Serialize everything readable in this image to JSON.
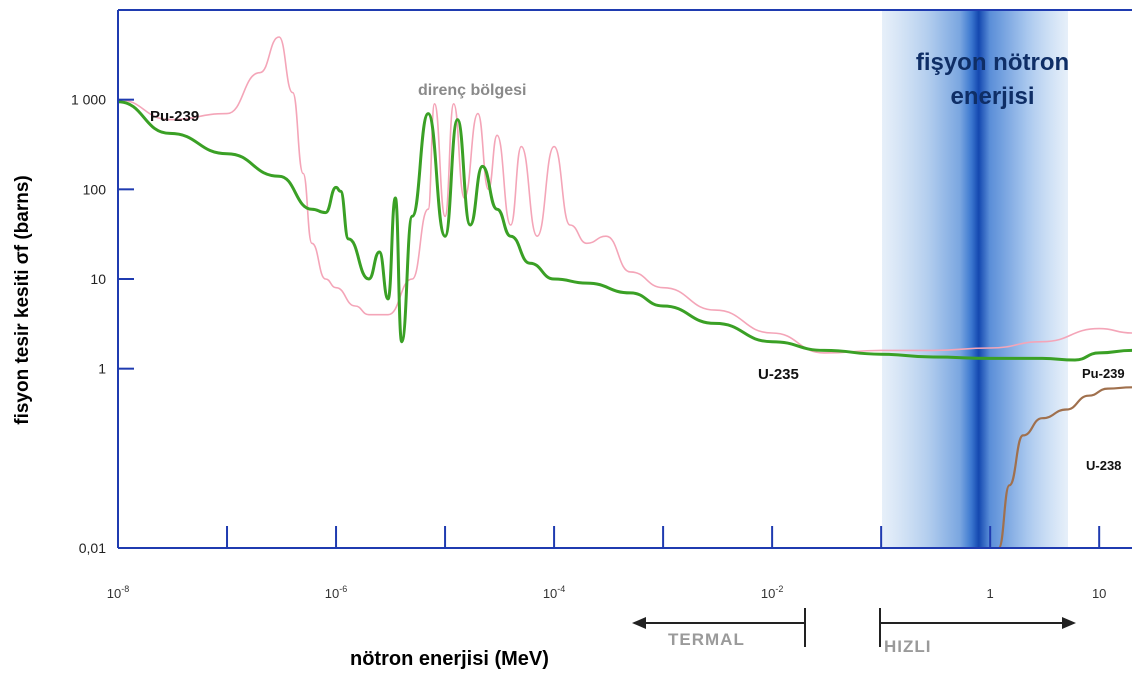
{
  "chart_data": {
    "type": "line",
    "title": "",
    "xlabel": "nötron enerjisi (MeV)",
    "ylabel": "fisyon tesir kesiti σf (barns)",
    "xscale": "log",
    "yscale": "log",
    "xlim": [
      1e-08,
      20
    ],
    "ylim": [
      0.01,
      10000
    ],
    "x_ticks": [
      {
        "value": 1e-08,
        "base": "10",
        "exp": "-8"
      },
      {
        "value": 1e-06,
        "base": "10",
        "exp": "-6"
      },
      {
        "value": 0.0001,
        "base": "10",
        "exp": "-4"
      },
      {
        "value": 0.01,
        "base": "10",
        "exp": "-2"
      },
      {
        "value": 1,
        "base": "1",
        "exp": ""
      },
      {
        "value": 10,
        "base": "10",
        "exp": ""
      }
    ],
    "y_ticks": [
      {
        "value": 1000,
        "label": "1 000"
      },
      {
        "value": 100,
        "label": "100"
      },
      {
        "value": 10,
        "label": "10"
      },
      {
        "value": 1,
        "label": "1"
      },
      {
        "value": 0.01,
        "label": "0,01"
      }
    ],
    "annotations": {
      "resonance_region": "direnç bölgesi",
      "fission_energy": [
        "fişyon nötron",
        "enerjisi"
      ],
      "thermal": "TERMAL",
      "fast": "HIZLI"
    },
    "series": [
      {
        "name": "Pu-239",
        "color": "#f4a5b8",
        "x": [
          1e-08,
          3e-08,
          1e-07,
          2e-07,
          3e-07,
          4e-07,
          5e-07,
          6e-07,
          8e-07,
          1e-06,
          1.5e-06,
          2e-06,
          3e-06,
          5e-06,
          7e-06,
          8e-06,
          1e-05,
          1.2e-05,
          1.5e-05,
          2e-05,
          2.5e-05,
          3e-05,
          4e-05,
          5e-05,
          7e-05,
          0.0001,
          0.00014,
          0.0002,
          0.0003,
          0.0005,
          0.001,
          0.003,
          0.01,
          0.03,
          0.1,
          0.3,
          1,
          3,
          10,
          20
        ],
        "y": [
          1000,
          600,
          700,
          2000,
          5000,
          1200,
          150,
          25,
          10,
          8,
          5,
          4,
          4,
          10,
          60,
          900,
          50,
          900,
          80,
          700,
          100,
          400,
          40,
          300,
          30,
          300,
          40,
          25,
          30,
          12,
          8,
          4.5,
          2.5,
          1.5,
          1.6,
          1.6,
          1.7,
          2.0,
          2.8,
          2.5
        ]
      },
      {
        "name": "U-235",
        "color": "#3aa025",
        "x": [
          1e-08,
          3e-08,
          1e-07,
          3e-07,
          6e-07,
          8e-07,
          1e-06,
          1.1e-06,
          1.3e-06,
          2e-06,
          2.5e-06,
          3e-06,
          3.5e-06,
          4e-06,
          5e-06,
          7e-06,
          1e-05,
          1.3e-05,
          1.7e-05,
          2.2e-05,
          3e-05,
          4e-05,
          6e-05,
          0.0001,
          0.0002,
          0.0005,
          0.001,
          0.003,
          0.01,
          0.03,
          0.1,
          0.3,
          1,
          3,
          6,
          10,
          20
        ],
        "y": [
          950,
          420,
          250,
          140,
          60,
          55,
          105,
          95,
          28,
          10,
          20,
          6,
          80,
          2,
          50,
          700,
          30,
          600,
          40,
          180,
          60,
          30,
          15,
          10,
          9,
          7,
          5,
          3.2,
          2.0,
          1.6,
          1.45,
          1.35,
          1.3,
          1.3,
          1.25,
          1.5,
          1.6
        ]
      },
      {
        "name": "U-238",
        "color": "#a0704d",
        "x": [
          1.2,
          1.5,
          2,
          3,
          5,
          8,
          12,
          20
        ],
        "y": [
          0.01,
          0.05,
          0.18,
          0.28,
          0.35,
          0.5,
          0.6,
          0.62
        ]
      }
    ]
  }
}
